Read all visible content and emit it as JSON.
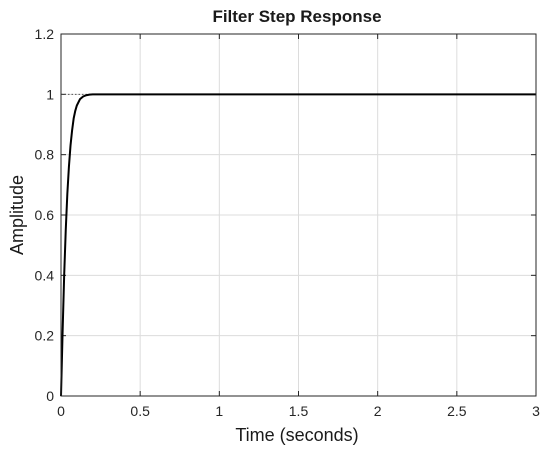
{
  "chart_data": {
    "type": "line",
    "title": "Filter Step Response",
    "xlabel": "Time (seconds)",
    "ylabel": "Amplitude",
    "xlim": [
      0,
      3
    ],
    "ylim": [
      0,
      1.2
    ],
    "xticks": [
      0,
      0.5,
      1,
      1.5,
      2,
      2.5,
      3
    ],
    "yticks": [
      0,
      0.2,
      0.4,
      0.6,
      0.8,
      1,
      1.2
    ],
    "xtick_labels": [
      "0",
      "0.5",
      "1",
      "1.5",
      "2",
      "2.5",
      "3"
    ],
    "ytick_labels": [
      "0",
      "0.2",
      "0.4",
      "0.6",
      "0.8",
      "1",
      "1.2"
    ],
    "grid": true,
    "steady_state": 1,
    "series": [
      {
        "color": "#000000",
        "x": [
          0,
          0.01,
          0.02,
          0.03,
          0.04,
          0.05,
          0.06,
          0.07,
          0.08,
          0.09,
          0.1,
          0.12,
          0.14,
          0.16,
          0.18,
          0.2,
          0.25,
          0.3,
          0.5,
          1,
          1.5,
          2,
          2.5,
          3
        ],
        "y": [
          0,
          0.21,
          0.4,
          0.55,
          0.67,
          0.76,
          0.83,
          0.88,
          0.92,
          0.945,
          0.963,
          0.984,
          0.993,
          0.997,
          0.999,
          1,
          1,
          1,
          1,
          1,
          1,
          1,
          1,
          1
        ]
      }
    ]
  }
}
